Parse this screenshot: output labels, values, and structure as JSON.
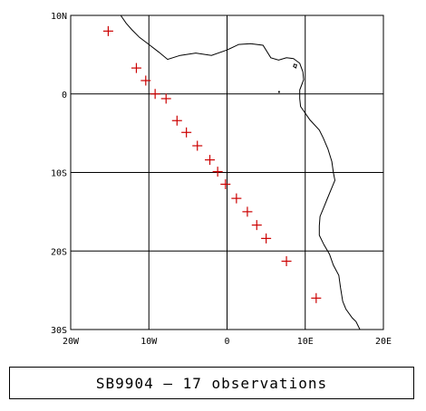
{
  "map": {
    "lon_range": [
      -20,
      20
    ],
    "lat_range": [
      -30,
      10
    ],
    "grid_lons": [
      -10,
      0,
      10
    ],
    "grid_lats": [
      0,
      -10,
      -20
    ],
    "x_tick_labels": [
      {
        "lon": -20,
        "label": "20W"
      },
      {
        "lon": -10,
        "label": "10W"
      },
      {
        "lon": 0,
        "label": "0"
      },
      {
        "lon": 10,
        "label": "10E"
      },
      {
        "lon": 20,
        "label": "20E"
      }
    ],
    "y_tick_labels": [
      {
        "lat": 10,
        "label": "10N"
      },
      {
        "lat": 0,
        "label": "0"
      },
      {
        "lat": -10,
        "label": "10S"
      },
      {
        "lat": -20,
        "label": "20S"
      },
      {
        "lat": -30,
        "label": "30S"
      }
    ],
    "marker_color": "#cc0000",
    "marker_symbol": "plus",
    "coastline": [
      [
        -13.6,
        10.0
      ],
      [
        -12.9,
        9.0
      ],
      [
        -12.2,
        8.2
      ],
      [
        -11.2,
        7.2
      ],
      [
        -10.0,
        6.3
      ],
      [
        -8.7,
        5.3
      ],
      [
        -7.6,
        4.4
      ],
      [
        -6.0,
        4.9
      ],
      [
        -4.0,
        5.2
      ],
      [
        -2.0,
        4.9
      ],
      [
        0.0,
        5.6
      ],
      [
        1.5,
        6.3
      ],
      [
        3.0,
        6.4
      ],
      [
        4.6,
        6.2
      ],
      [
        5.6,
        4.6
      ],
      [
        6.6,
        4.3
      ],
      [
        7.6,
        4.6
      ],
      [
        8.5,
        4.5
      ],
      [
        9.3,
        3.9
      ],
      [
        9.7,
        2.8
      ],
      [
        9.8,
        1.8
      ],
      [
        9.3,
        0.5
      ],
      [
        9.3,
        -0.6
      ],
      [
        9.4,
        -1.6
      ],
      [
        10.6,
        -3.3
      ],
      [
        11.8,
        -4.6
      ],
      [
        12.3,
        -5.6
      ],
      [
        12.9,
        -7.0
      ],
      [
        13.4,
        -8.6
      ],
      [
        13.6,
        -10.0
      ],
      [
        13.8,
        -11.0
      ],
      [
        13.3,
        -12.2
      ],
      [
        12.8,
        -13.4
      ],
      [
        12.4,
        -14.4
      ],
      [
        11.9,
        -15.6
      ],
      [
        11.8,
        -16.8
      ],
      [
        11.8,
        -18.0
      ],
      [
        12.4,
        -19.2
      ],
      [
        13.1,
        -20.4
      ],
      [
        13.6,
        -21.8
      ],
      [
        14.3,
        -23.1
      ],
      [
        14.5,
        -24.6
      ],
      [
        14.8,
        -26.4
      ],
      [
        15.2,
        -27.4
      ],
      [
        16.0,
        -28.5
      ],
      [
        16.5,
        -29.0
      ],
      [
        17.0,
        -30.0
      ]
    ],
    "islands": [
      [
        [
          8.6,
          3.8
        ],
        [
          8.9,
          3.7
        ],
        [
          8.8,
          3.3
        ],
        [
          8.5,
          3.5
        ],
        [
          8.6,
          3.8
        ]
      ],
      [
        [
          6.6,
          0.3
        ],
        [
          6.7,
          0.3
        ],
        [
          6.7,
          0.2
        ],
        [
          6.6,
          0.2
        ],
        [
          6.6,
          0.3
        ]
      ]
    ]
  },
  "observations": [
    {
      "lon": -15.2,
      "lat": 8.0
    },
    {
      "lon": -11.6,
      "lat": 3.3
    },
    {
      "lon": -10.4,
      "lat": 1.7
    },
    {
      "lon": -9.2,
      "lat": 0.0
    },
    {
      "lon": -7.8,
      "lat": -0.6
    },
    {
      "lon": -6.4,
      "lat": -3.4
    },
    {
      "lon": -5.2,
      "lat": -4.9
    },
    {
      "lon": -3.8,
      "lat": -6.6
    },
    {
      "lon": -2.2,
      "lat": -8.4
    },
    {
      "lon": -1.2,
      "lat": -9.9
    },
    {
      "lon": -0.2,
      "lat": -11.5
    },
    {
      "lon": 1.2,
      "lat": -13.3
    },
    {
      "lon": 2.6,
      "lat": -15.0
    },
    {
      "lon": 3.8,
      "lat": -16.7
    },
    {
      "lon": 5.0,
      "lat": -18.4
    },
    {
      "lon": 7.6,
      "lat": -21.3
    },
    {
      "lon": 11.4,
      "lat": -26.0
    }
  ],
  "caption": "SB9904 — 17 observations"
}
